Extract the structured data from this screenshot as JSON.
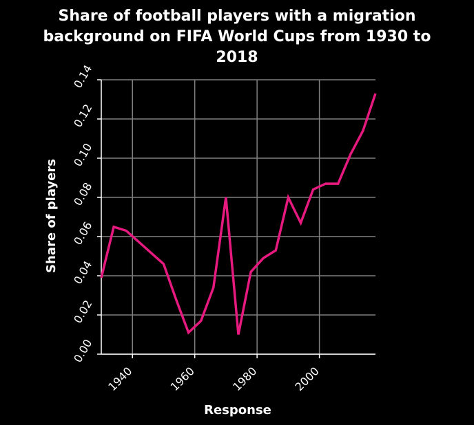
{
  "chart_data": {
    "type": "line",
    "title_lines": [
      "Share of football players with a migration",
      "background on FIFA World Cups from 1930 to",
      "2018"
    ],
    "xlabel": "Response",
    "ylabel": "Share of players",
    "xlim": [
      1930,
      2018
    ],
    "ylim": [
      0,
      0.14
    ],
    "x_ticks": [
      1940,
      1960,
      1980,
      2000
    ],
    "y_ticks": [
      "0.00",
      "0.02",
      "0.04",
      "0.06",
      "0.08",
      "0.10",
      "0.12",
      "0.14"
    ],
    "grid": true,
    "line_color": "#e6197f",
    "background_color": "#000000",
    "series": [
      {
        "x": [
          1930,
          1934,
          1938,
          1950,
          1954,
          1958,
          1962,
          1966,
          1970,
          1974,
          1978,
          1982,
          1986,
          1990,
          1994,
          1998,
          2002,
          2006,
          2010,
          2014,
          2018
        ],
        "values": [
          0.039,
          0.065,
          0.063,
          0.046,
          0.028,
          0.011,
          0.017,
          0.034,
          0.08,
          0.01,
          0.042,
          0.049,
          0.053,
          0.08,
          0.067,
          0.084,
          0.087,
          0.087,
          0.102,
          0.114,
          0.133
        ]
      }
    ]
  }
}
